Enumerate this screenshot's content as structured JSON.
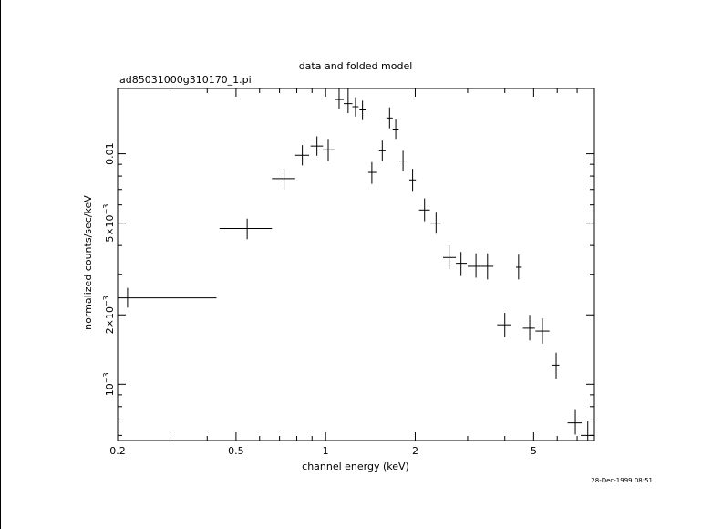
{
  "chart_data": {
    "type": "scatter",
    "title": "data and folded model",
    "subtitle": "ad85031000g310170_1.pi",
    "xlabel": "channel energy (keV)",
    "ylabel": "normalized counts/sec/keV",
    "x_scale": "log",
    "y_scale": "log",
    "xlim": [
      0.2,
      8.0
    ],
    "ylim": [
      0.00057,
      0.0192
    ],
    "x_tick_labels": [
      {
        "value": 0.2,
        "label": "0.2"
      },
      {
        "value": 0.5,
        "label": "0.5"
      },
      {
        "value": 1,
        "label": "1"
      },
      {
        "value": 2,
        "label": "2"
      },
      {
        "value": 5,
        "label": "5"
      }
    ],
    "y_tick_labels": [
      {
        "value": 0.001,
        "base": "10",
        "exp": "−3"
      },
      {
        "value": 0.002,
        "base": "2×10",
        "exp": "−3"
      },
      {
        "value": 0.005,
        "base": "5×10",
        "exp": "−3"
      },
      {
        "value": 0.01,
        "base": "0.01",
        "exp": ""
      }
    ],
    "series": [
      {
        "points": [
          {
            "x": 0.216,
            "xlo": 0.2,
            "xhi": 0.43,
            "y": 0.00237,
            "ylo": 0.00215,
            "yhi": 0.00262
          },
          {
            "x": 0.545,
            "xlo": 0.44,
            "xhi": 0.66,
            "y": 0.00474,
            "ylo": 0.00426,
            "yhi": 0.00523
          },
          {
            "x": 0.725,
            "xlo": 0.66,
            "xhi": 0.79,
            "y": 0.0078,
            "ylo": 0.007,
            "yhi": 0.0086
          },
          {
            "x": 0.835,
            "xlo": 0.79,
            "xhi": 0.88,
            "y": 0.00985,
            "ylo": 0.0089,
            "yhi": 0.0109
          },
          {
            "x": 0.935,
            "xlo": 0.89,
            "xhi": 0.98,
            "y": 0.0108,
            "ylo": 0.0098,
            "yhi": 0.0119
          },
          {
            "x": 1.02,
            "xlo": 0.98,
            "xhi": 1.07,
            "y": 0.0104,
            "ylo": 0.0093,
            "yhi": 0.0116
          },
          {
            "x": 1.11,
            "xlo": 1.08,
            "xhi": 1.15,
            "y": 0.0172,
            "ylo": 0.0156,
            "yhi": 0.0192
          },
          {
            "x": 1.19,
            "xlo": 1.15,
            "xhi": 1.23,
            "y": 0.0165,
            "ylo": 0.015,
            "yhi": 0.0192
          },
          {
            "x": 1.26,
            "xlo": 1.23,
            "xhi": 1.29,
            "y": 0.016,
            "ylo": 0.0145,
            "yhi": 0.0176
          },
          {
            "x": 1.33,
            "xlo": 1.3,
            "xhi": 1.37,
            "y": 0.0155,
            "ylo": 0.014,
            "yhi": 0.017
          },
          {
            "x": 1.43,
            "xlo": 1.39,
            "xhi": 1.48,
            "y": 0.0083,
            "ylo": 0.0074,
            "yhi": 0.0092
          },
          {
            "x": 1.55,
            "xlo": 1.51,
            "xhi": 1.59,
            "y": 0.0103,
            "ylo": 0.0093,
            "yhi": 0.0114
          },
          {
            "x": 1.64,
            "xlo": 1.6,
            "xhi": 1.68,
            "y": 0.0143,
            "ylo": 0.0129,
            "yhi": 0.0159
          },
          {
            "x": 1.72,
            "xlo": 1.68,
            "xhi": 1.76,
            "y": 0.0128,
            "ylo": 0.0116,
            "yhi": 0.0141
          },
          {
            "x": 1.82,
            "xlo": 1.77,
            "xhi": 1.87,
            "y": 0.0093,
            "ylo": 0.0084,
            "yhi": 0.0103
          },
          {
            "x": 1.96,
            "xlo": 1.91,
            "xhi": 2.01,
            "y": 0.0077,
            "ylo": 0.0069,
            "yhi": 0.0086
          },
          {
            "x": 2.15,
            "xlo": 2.06,
            "xhi": 2.24,
            "y": 0.0057,
            "ylo": 0.0051,
            "yhi": 0.0064
          },
          {
            "x": 2.35,
            "xlo": 2.25,
            "xhi": 2.44,
            "y": 0.005,
            "ylo": 0.0045,
            "yhi": 0.0056
          },
          {
            "x": 2.6,
            "xlo": 2.48,
            "xhi": 2.74,
            "y": 0.00355,
            "ylo": 0.00315,
            "yhi": 0.004
          },
          {
            "x": 2.85,
            "xlo": 2.74,
            "xhi": 2.98,
            "y": 0.00335,
            "ylo": 0.00295,
            "yhi": 0.00375
          },
          {
            "x": 3.2,
            "xlo": 3.0,
            "xhi": 3.32,
            "y": 0.00325,
            "ylo": 0.0029,
            "yhi": 0.0037
          },
          {
            "x": 3.5,
            "xlo": 3.32,
            "xhi": 3.66,
            "y": 0.00325,
            "ylo": 0.00285,
            "yhi": 0.0037
          },
          {
            "x": 4.0,
            "xlo": 3.77,
            "xhi": 4.18,
            "y": 0.00181,
            "ylo": 0.0016,
            "yhi": 0.00204
          },
          {
            "x": 4.45,
            "xlo": 4.36,
            "xhi": 4.56,
            "y": 0.00322,
            "ylo": 0.00285,
            "yhi": 0.00365
          },
          {
            "x": 4.85,
            "xlo": 4.6,
            "xhi": 5.05,
            "y": 0.00175,
            "ylo": 0.00155,
            "yhi": 0.002
          },
          {
            "x": 5.35,
            "xlo": 5.07,
            "xhi": 5.65,
            "y": 0.0017,
            "ylo": 0.0015,
            "yhi": 0.00193
          },
          {
            "x": 5.95,
            "xlo": 5.76,
            "xhi": 6.1,
            "y": 0.00121,
            "ylo": 0.00106,
            "yhi": 0.00137
          },
          {
            "x": 6.9,
            "xlo": 6.5,
            "xhi": 7.25,
            "y": 0.00068,
            "ylo": 0.000605,
            "yhi": 0.00078
          },
          {
            "x": 7.6,
            "xlo": 7.2,
            "xhi": 8.0,
            "y": 0.0006,
            "ylo": 0.00057,
            "yhi": 0.00069
          }
        ]
      }
    ]
  },
  "footer": {
    "timestamp": "28-Dec-1999 08:51"
  }
}
